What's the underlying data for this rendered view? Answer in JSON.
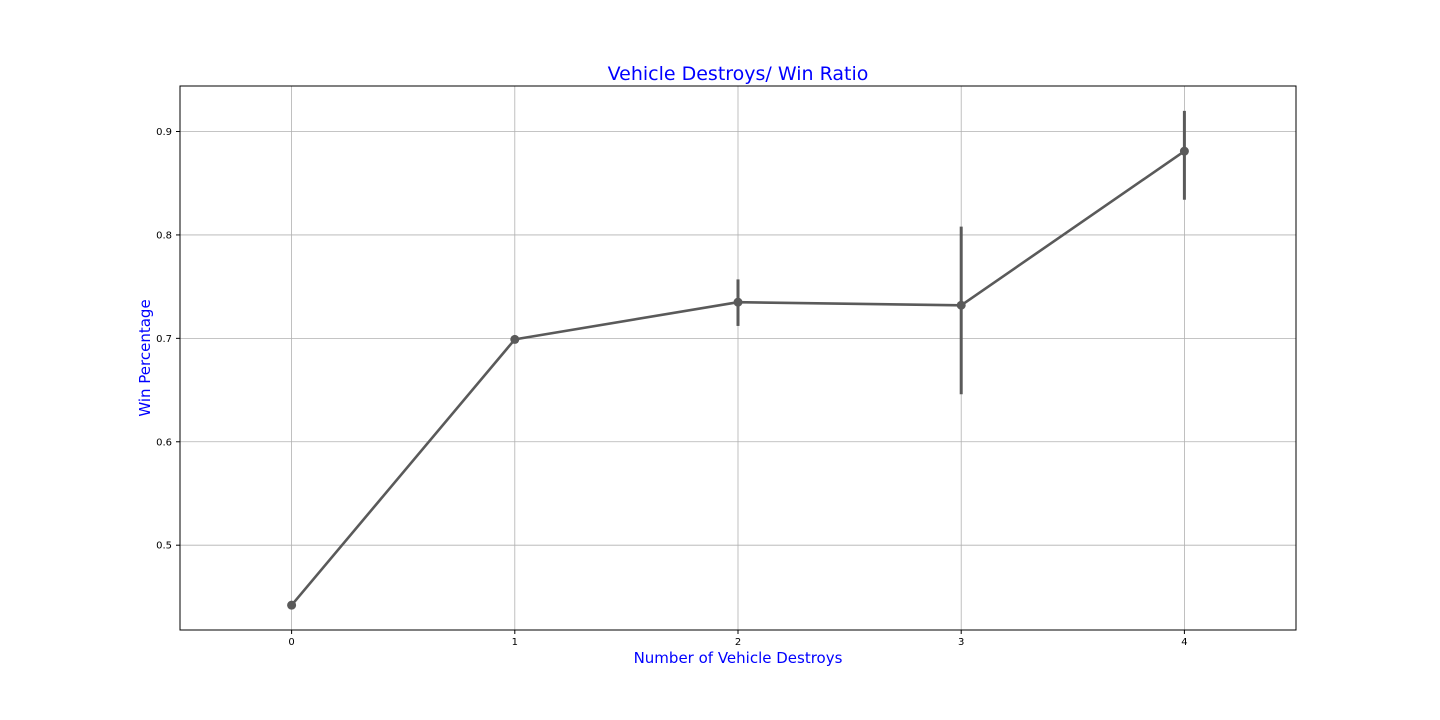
{
  "chart_data": {
    "type": "line",
    "title": "Vehicle Destroys/ Win Ratio",
    "xlabel": "Number of Vehicle Destroys",
    "ylabel": "Win Percentage",
    "categories": [
      "0",
      "1",
      "2",
      "3",
      "4"
    ],
    "series": [
      {
        "values": [
          0.442,
          0.699,
          0.735,
          0.732,
          0.881
        ],
        "ci_low": [
          0.442,
          0.699,
          0.712,
          0.646,
          0.834
        ],
        "ci_high": [
          0.442,
          0.699,
          0.757,
          0.808,
          0.92
        ]
      }
    ],
    "yticks": [
      "0.5",
      "0.6",
      "0.7",
      "0.8",
      "0.9"
    ],
    "ylim": [
      0.418,
      0.944
    ],
    "xlim": [
      -0.5,
      4.5
    ],
    "grid": true,
    "legend": "none",
    "colors": {
      "line": "#5a5a5a",
      "title": "#0000ff",
      "axis_label": "#0000ff",
      "grid": "#b0b0b0"
    }
  }
}
